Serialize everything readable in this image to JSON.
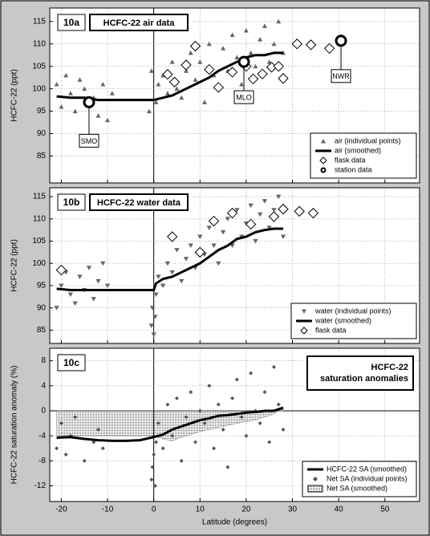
{
  "chart_data": [
    {
      "type": "scatter",
      "label": "10a",
      "title": [
        "HCFC-22 air data"
      ],
      "ylabel": "HCFC-22 (ppt)",
      "xlim": [
        -22.5,
        57.5
      ],
      "xticks": [
        -20,
        -10,
        0,
        10,
        20,
        30,
        40,
        50
      ],
      "ylim": [
        79,
        118
      ],
      "yticks": [
        85,
        90,
        95,
        100,
        105,
        110,
        115
      ],
      "grid": true,
      "legend": "lower right",
      "series": [
        {
          "name": "air (individual points)",
          "style": "triangle-up",
          "color": "#666666",
          "x": [
            -21,
            -20,
            -19,
            -18,
            -17,
            -16,
            -15,
            -14,
            -13,
            -12,
            -11,
            -10,
            -9,
            -1,
            -0.5,
            0.5,
            1,
            2,
            3,
            4,
            5,
            6,
            7,
            8,
            9,
            10,
            11,
            12,
            13,
            14,
            15,
            16,
            17,
            18,
            19,
            20,
            21,
            22,
            23,
            24,
            25,
            26,
            27,
            28
          ],
          "values": [
            101,
            96,
            103,
            99,
            95,
            102,
            100,
            97,
            98,
            94,
            101,
            93,
            99,
            95,
            104,
            97,
            101,
            103,
            99,
            106,
            100,
            98,
            104,
            108,
            102,
            106,
            97,
            110,
            103,
            100,
            109,
            104,
            112,
            107,
            101,
            113,
            108,
            105,
            111,
            114,
            106,
            110,
            115,
            108
          ]
        },
        {
          "name": "air (smoothed)",
          "style": "line",
          "color": "#000000",
          "x": [
            -21,
            -18,
            -15,
            -12,
            -9,
            -6,
            -3,
            0,
            2,
            4,
            6,
            8,
            10,
            12,
            14,
            16,
            18,
            20,
            22,
            24,
            26,
            28
          ],
          "values": [
            98.3,
            98,
            98,
            97.5,
            97.5,
            97.5,
            97.5,
            97.5,
            98,
            98.5,
            99.5,
            100.5,
            101.5,
            102.5,
            104,
            105,
            106,
            107,
            107.5,
            107.5,
            108,
            108
          ]
        },
        {
          "name": "flask data",
          "style": "diamond",
          "color": "#000000",
          "x": [
            3,
            4.5,
            7,
            9,
            12,
            14,
            17,
            20,
            21.5,
            23.5,
            25.5,
            27,
            28,
            31,
            34,
            38
          ],
          "values": [
            103.2,
            101.5,
            105.3,
            109.5,
            104.3,
            100.3,
            103.7,
            105,
            102.2,
            103.3,
            104.8,
            105,
            102.3,
            110,
            109.8,
            109
          ]
        },
        {
          "name": "station data",
          "style": "circle",
          "color": "#000000",
          "x": [
            -14,
            19.5,
            40.5
          ],
          "values": [
            97,
            106,
            110.7
          ],
          "labels": [
            "SMO",
            "MLO",
            "NWR"
          ]
        }
      ]
    },
    {
      "type": "scatter",
      "label": "10b",
      "title": [
        "HCFC-22 water data"
      ],
      "ylabel": "HCFC-22 (ppt)",
      "xlim": [
        -22.5,
        57.5
      ],
      "xticks": [
        -20,
        -10,
        0,
        10,
        20,
        30,
        40,
        50
      ],
      "ylim": [
        82,
        117
      ],
      "yticks": [
        85,
        90,
        95,
        100,
        105,
        110,
        115
      ],
      "grid": true,
      "legend": "lower right",
      "series": [
        {
          "name": "water (individual points)",
          "style": "triangle-down",
          "color": "#666666",
          "x": [
            -21,
            -20,
            -19,
            -18,
            -17,
            -16,
            -15,
            -14,
            -13,
            -12,
            -11,
            -10,
            -0.5,
            -0.3,
            0,
            0.3,
            0.5,
            1,
            2,
            3,
            4,
            5,
            6,
            7,
            8,
            9,
            10,
            11,
            12,
            13,
            14,
            15,
            16,
            17,
            18,
            19,
            20,
            21,
            22,
            23,
            24,
            25,
            26,
            27,
            28
          ],
          "values": [
            90,
            95,
            98,
            93,
            91,
            97,
            94,
            99,
            92,
            96,
            100,
            95,
            86,
            90,
            84,
            88,
            93,
            97,
            95,
            100,
            98,
            103,
            96,
            101,
            104,
            99,
            106,
            102,
            108,
            104,
            100,
            107,
            110,
            104,
            112,
            106,
            109,
            113,
            105,
            111,
            114,
            108,
            112,
            115,
            106
          ]
        },
        {
          "name": "water (smoothed)",
          "style": "line",
          "color": "#000000",
          "x": [
            -21,
            -18,
            -15,
            -12,
            -9,
            -6,
            -3,
            0,
            0.5,
            2,
            4,
            6,
            8,
            10,
            12,
            14,
            16,
            18,
            20,
            22,
            24,
            26,
            28
          ],
          "values": [
            94.3,
            94,
            94,
            94,
            94,
            94,
            94,
            94,
            95.5,
            96.5,
            97,
            98,
            99,
            100,
            101.5,
            103,
            104,
            105.5,
            106,
            107,
            107.5,
            107.8,
            107.8
          ]
        },
        {
          "name": "flask data",
          "style": "diamond",
          "color": "#000000",
          "x": [
            -20,
            4,
            10,
            13,
            17,
            21,
            26,
            28,
            31.5,
            34.5
          ],
          "values": [
            98.5,
            106,
            102.5,
            109.5,
            111.3,
            108.8,
            110.5,
            112.2,
            111.7,
            111.3
          ]
        }
      ]
    },
    {
      "type": "scatter",
      "label": "10c",
      "title": [
        "HCFC-22",
        "saturation anomalies"
      ],
      "ylabel": "HCFC-22 saturation anomaly (%)",
      "xlabel": "Latitude (degrees)",
      "xlim": [
        -22.5,
        57.5
      ],
      "xticks": [
        -20,
        -10,
        0,
        10,
        20,
        30,
        40,
        50
      ],
      "ylim": [
        -14.5,
        10
      ],
      "yticks": [
        -12,
        -8,
        -4,
        0,
        4,
        8
      ],
      "grid": true,
      "legend": "lower right",
      "series": [
        {
          "name": "HCFC-22 SA (smoothed)",
          "style": "line",
          "color": "#000000",
          "x": [
            -21,
            -18,
            -15,
            -12,
            -9,
            -6,
            -3,
            0,
            2,
            4,
            6,
            8,
            10,
            12,
            14,
            16,
            18,
            20,
            22,
            24,
            26,
            28
          ],
          "values": [
            -4.3,
            -4.2,
            -4.5,
            -4.7,
            -4.8,
            -4.8,
            -4.7,
            -4.2,
            -3.8,
            -3,
            -2.5,
            -2,
            -1.5,
            -1.2,
            -0.8,
            -0.7,
            -0.5,
            -0.3,
            -0.2,
            0,
            0,
            0.5
          ]
        },
        {
          "name": "Net SA (individual points)",
          "style": "small-diamond",
          "color": "#555555",
          "x": [
            -21,
            -20,
            -19,
            -18,
            -17,
            -15,
            -13,
            -12,
            -11,
            -0.5,
            -0.3,
            0,
            0.3,
            0.5,
            1,
            2,
            3,
            4,
            5,
            6,
            7,
            8,
            9,
            10,
            11,
            12,
            13,
            14,
            15,
            16,
            17,
            18,
            19,
            20,
            21,
            22,
            23,
            24,
            25,
            26,
            27,
            28
          ],
          "values": [
            -6,
            -2,
            -7,
            -4,
            -1,
            -8,
            -5,
            -3,
            -6,
            -11,
            -9,
            -7,
            -12,
            -5,
            -2,
            -6,
            1,
            -4,
            2,
            -8,
            -1,
            3,
            -5,
            0,
            -2,
            4,
            -6,
            1,
            -3,
            -9,
            2,
            5,
            -1,
            -4,
            6,
            0,
            -2,
            3,
            -5,
            7,
            1,
            -3
          ]
        },
        {
          "name": "Net SA (smoothed)",
          "style": "area",
          "color": "#777777",
          "x": [
            -21,
            -15,
            -10,
            -5,
            0,
            2,
            4,
            6,
            8,
            10,
            12,
            14,
            16,
            18,
            20,
            22,
            24,
            26,
            28
          ],
          "values": [
            -4,
            -4,
            -4,
            -4,
            -4,
            -4.5,
            -4.8,
            -4.2,
            -3.8,
            -3.3,
            -3,
            -2.7,
            -2.3,
            -2,
            -1.7,
            -1.5,
            -1,
            -0.5,
            0.5
          ]
        }
      ]
    }
  ]
}
